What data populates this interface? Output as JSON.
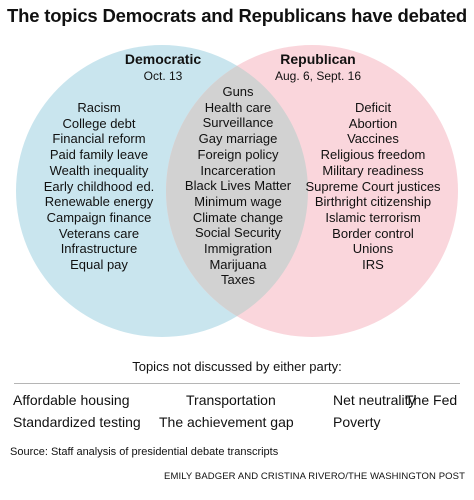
{
  "title": "The topics Democrats and Republicans have debated",
  "colors": {
    "democratic_fill": "#c9e5ee",
    "republican_fill": "#fad6dc",
    "overlap_fill": "#d2d2d2"
  },
  "democratic": {
    "label": "Democratic",
    "date": "Oct. 13",
    "topics": [
      "Racism",
      "College debt",
      "Financial reform",
      "Paid family leave",
      "Wealth inequality",
      "Early childhood ed.",
      "Renewable energy",
      "Campaign finance",
      "Veterans care",
      "Infrastructure",
      "Equal pay"
    ]
  },
  "republican": {
    "label": "Republican",
    "date": "Aug. 6, Sept. 16",
    "topics": [
      "Deficit",
      "Abortion",
      "Vaccines",
      "Religious freedom",
      "Military readiness",
      "Supreme Court justices",
      "Birthright citizenship",
      "Islamic terrorism",
      "Border control",
      "Unions",
      "IRS"
    ]
  },
  "both": {
    "topics": [
      "Guns",
      "Health care",
      "Surveillance",
      "Gay marriage",
      "Foreign policy",
      "Incarceration",
      "Black Lives Matter",
      "Minimum wage",
      "Climate change",
      "Social Security",
      "Immigration",
      "Marijuana",
      "Taxes"
    ]
  },
  "neither": {
    "label": "Topics not discussed by either party:",
    "topics": [
      "Affordable housing",
      "Transportation",
      "Net neutrality",
      "The Fed",
      "Standardized testing",
      "The achievement gap",
      "Poverty"
    ]
  },
  "source": "Source: Staff analysis of presidential debate transcripts",
  "credit": "EMILY BADGER AND CRISTINA RIVERO/THE WASHINGTON POST"
}
